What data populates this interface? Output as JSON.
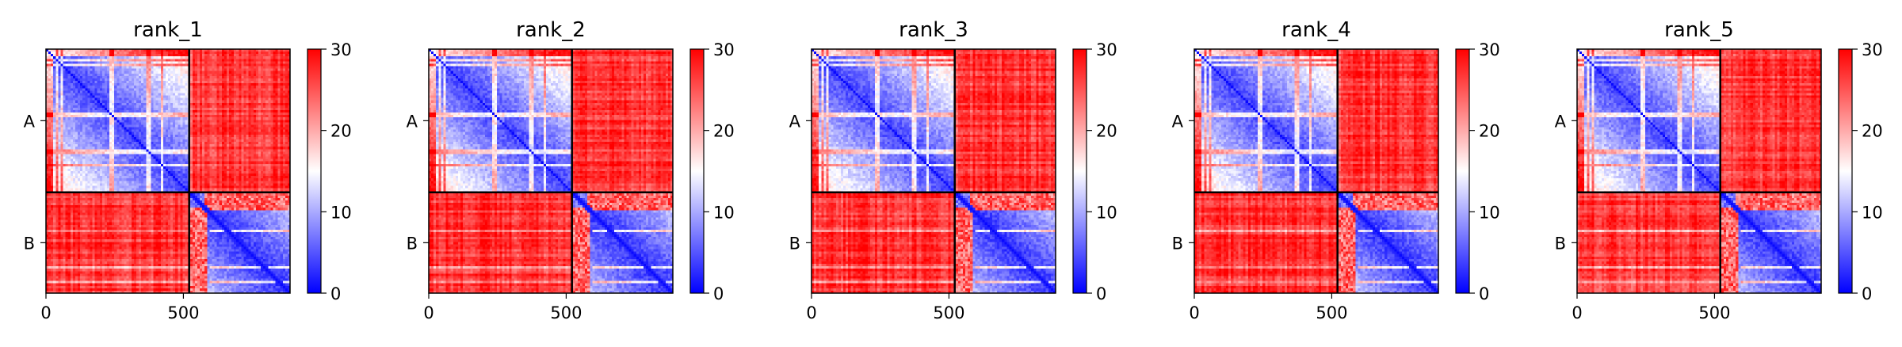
{
  "chart_data": [
    {
      "type": "heatmap",
      "title": "rank_1",
      "xlabel": "",
      "ylabel": "",
      "x_range": [
        0,
        888
      ],
      "x_ticks": [
        0,
        500
      ],
      "y_ticks": [
        "A",
        "B"
      ],
      "chain_break": 521,
      "colorbar": {
        "min": 0,
        "max": 30,
        "ticks": [
          0,
          10,
          20,
          30
        ],
        "colors": [
          "#0000ff",
          "#ffffff",
          "#ff0000"
        ]
      }
    },
    {
      "type": "heatmap",
      "title": "rank_2",
      "xlabel": "",
      "ylabel": "",
      "x_range": [
        0,
        888
      ],
      "x_ticks": [
        0,
        500
      ],
      "y_ticks": [
        "A",
        "B"
      ],
      "chain_break": 521,
      "colorbar": {
        "min": 0,
        "max": 30,
        "ticks": [
          0,
          10,
          20,
          30
        ],
        "colors": [
          "#0000ff",
          "#ffffff",
          "#ff0000"
        ]
      }
    },
    {
      "type": "heatmap",
      "title": "rank_3",
      "xlabel": "",
      "ylabel": "",
      "x_range": [
        0,
        888
      ],
      "x_ticks": [
        0,
        500
      ],
      "y_ticks": [
        "A",
        "B"
      ],
      "chain_break": 521,
      "colorbar": {
        "min": 0,
        "max": 30,
        "ticks": [
          0,
          10,
          20,
          30
        ],
        "colors": [
          "#0000ff",
          "#ffffff",
          "#ff0000"
        ]
      }
    },
    {
      "type": "heatmap",
      "title": "rank_4",
      "xlabel": "",
      "ylabel": "",
      "x_range": [
        0,
        888
      ],
      "x_ticks": [
        0,
        500
      ],
      "y_ticks": [
        "A",
        "B"
      ],
      "chain_break": 521,
      "colorbar": {
        "min": 0,
        "max": 30,
        "ticks": [
          0,
          10,
          20,
          30
        ],
        "colors": [
          "#0000ff",
          "#ffffff",
          "#ff0000"
        ]
      }
    },
    {
      "type": "heatmap",
      "title": "rank_5",
      "xlabel": "",
      "ylabel": "",
      "x_range": [
        0,
        888
      ],
      "x_ticks": [
        0,
        500
      ],
      "y_ticks": [
        "A",
        "B"
      ],
      "chain_break": 521,
      "colorbar": {
        "min": 0,
        "max": 30,
        "ticks": [
          0,
          10,
          20,
          30
        ],
        "colors": [
          "#0000ff",
          "#ffffff",
          "#ff0000"
        ]
      }
    }
  ]
}
